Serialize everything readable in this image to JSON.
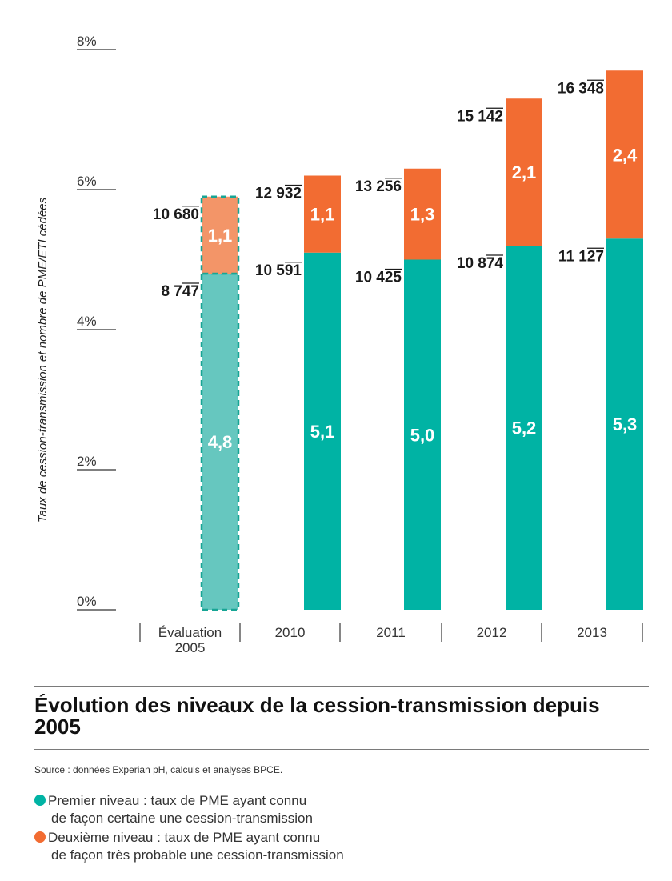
{
  "chart_data": {
    "type": "bar",
    "stacked": true,
    "ylabel": "Taux de cession-transmission et nombre de PME/ETI cédées",
    "ylim": [
      0,
      8
    ],
    "yticks": [
      "8%",
      "6%",
      "4%",
      "2%",
      "0%"
    ],
    "categories": [
      "Évaluation 2005",
      "2010",
      "2011",
      "2012",
      "2013"
    ],
    "series": [
      {
        "name": "Premier niveau",
        "values": [
          4.8,
          5.1,
          5.0,
          5.2,
          5.3
        ],
        "labels": [
          "4,8",
          "5,1",
          "5,0",
          "5,2",
          "5,3"
        ]
      },
      {
        "name": "Deuxième niveau",
        "values": [
          1.1,
          1.1,
          1.3,
          2.1,
          2.4
        ],
        "labels": [
          "1,1",
          "1,1",
          "1,3",
          "2,1",
          "2,4"
        ]
      }
    ],
    "counts_first_level": [
      "8 747",
      "10 591",
      "10 425",
      "10 874",
      "11 127"
    ],
    "counts_total": [
      "10 680",
      "12 932",
      "13 256",
      "15 142",
      "16 348"
    ],
    "estimated_first_bar": true,
    "colors": {
      "first": "#00b3a4",
      "second": "#f26c32",
      "first_est": "#66c7bf",
      "second_est": "#f39568",
      "est_border": "#17a595"
    }
  },
  "title": "Évolution des niveaux de la cession-transmission depuis 2005",
  "source": "Source : données Experian pH, calculs et analyses BPCE.",
  "legend": [
    {
      "line1": "Premier niveau : taux de PME ayant connu",
      "line2": "de façon certaine une cession-transmission",
      "color": "#00b3a4"
    },
    {
      "line1": "Deuxième niveau : taux de PME ayant connu",
      "line2": "de façon très probable une cession-transmission",
      "color": "#f26c32"
    }
  ]
}
